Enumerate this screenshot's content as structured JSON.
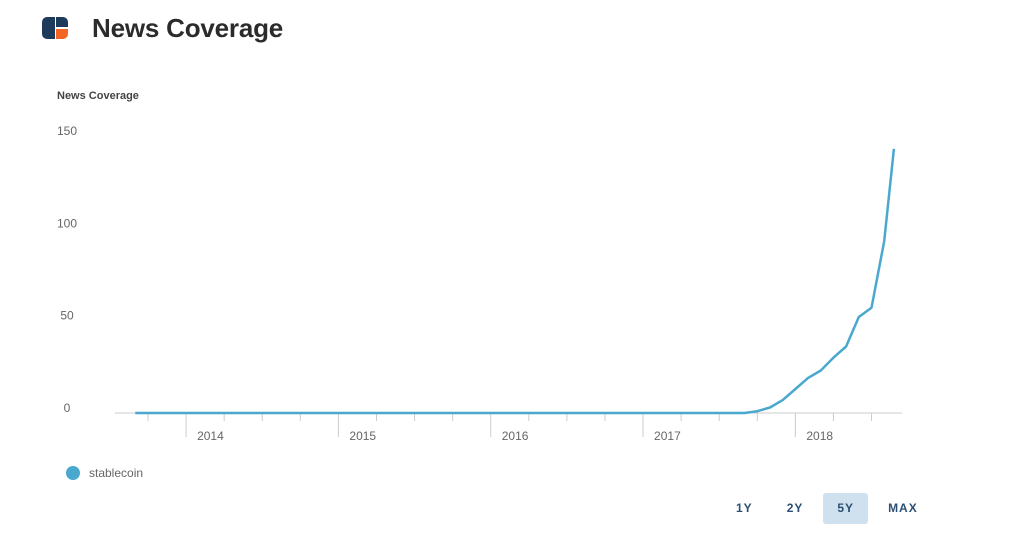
{
  "header": {
    "title": "News Coverage",
    "logo_icon": "brand-logo-icon"
  },
  "chart_data": {
    "type": "line",
    "ylabel": "News Coverage",
    "ylim": [
      0,
      150
    ],
    "yticks": [
      0,
      50,
      100,
      150
    ],
    "xticks": [
      "2014",
      "2015",
      "2016",
      "2017",
      "2018"
    ],
    "xlim": [
      "2013-07",
      "2018-09"
    ],
    "series": [
      {
        "name": "stablecoin",
        "color": "#4aa8cf",
        "x": [
          "2013-09",
          "2014-03",
          "2014-09",
          "2015-03",
          "2015-09",
          "2016-03",
          "2016-09",
          "2017-03",
          "2017-09",
          "2017-10",
          "2017-11",
          "2017-12",
          "2018-01",
          "2018-02",
          "2018-03",
          "2018-04",
          "2018-05",
          "2018-06",
          "2018-07",
          "2018-08"
        ],
        "values": [
          0,
          0,
          0,
          0,
          0,
          0,
          0,
          0,
          0,
          1,
          3,
          7,
          13,
          19,
          23,
          30,
          36,
          52,
          57,
          93
        ]
      }
    ],
    "final_point": {
      "x": "2018-09",
      "value": 143
    },
    "grid": false,
    "legend_position": "bottom-left"
  },
  "range_selector": {
    "options": [
      "1Y",
      "2Y",
      "5Y",
      "MAX"
    ],
    "selected": "5Y"
  },
  "colors": {
    "line": "#4aa8cf",
    "axis": "#cccccc",
    "active_button_bg": "#cfe1ef"
  }
}
